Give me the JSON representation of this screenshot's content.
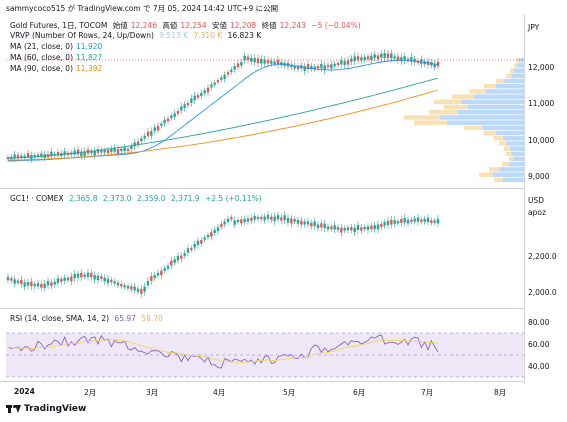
{
  "header": {
    "text": "sammycoco515 が TradingView.com で 7月 05, 2024 14:42 UTC+9 に公開"
  },
  "main_legend": {
    "title": "Gold Futures, 1日, TOCOM",
    "open_label": "始値",
    "open": "12,246",
    "high_label": "高値",
    "high": "12,254",
    "low_label": "安値",
    "low": "12,208",
    "close_label": "終値",
    "close": "12,243",
    "change": "−5 (−0.04%)",
    "vrvp_label": "VRVP (Number Of Rows, 24, Up/Down)",
    "vrvp_v1": "9.513 K",
    "vrvp_v2": "7.310 K",
    "vrvp_v3": "16.823 K",
    "ma21_label": "MA (21, close, 0)",
    "ma21": "11,920",
    "ma60_label": "MA (60, close, 0)",
    "ma60": "11,827",
    "ma90_label": "MA (90, close, 0)",
    "ma90": "11,392"
  },
  "comex_legend": {
    "title": "GC1! · COMEX",
    "o": "2,365.8",
    "h": "2,373.0",
    "l": "2,359.0",
    "c": "2,371.9",
    "chg": "+2.5 (+0.11%)"
  },
  "rsi_legend": {
    "label": "RSI (14, close, SMA, 14, 2)",
    "rsi": "65.97",
    "sma": "58.70"
  },
  "currency": {
    "top": "JPY",
    "mid": "USD",
    "mid_sub": "apoz"
  },
  "y_axis_top": [
    "12,000",
    "11,000",
    "10,000",
    "9,000"
  ],
  "y_axis_mid": [
    "2,200.0",
    "2,000.0"
  ],
  "y_axis_rsi": [
    "80.00",
    "60.00",
    "40.00"
  ],
  "x_axis": [
    "2024",
    "2月",
    "3月",
    "4月",
    "5月",
    "6月",
    "7月",
    "8月"
  ],
  "footer": {
    "brand": "TradingView"
  },
  "colors": {
    "up": "#26a69a",
    "down": "#ef5350",
    "ma21": "#2196f3",
    "ma60": "#26a69a",
    "ma90": "#ef8f1a",
    "rsi": "#7e57c2",
    "rsi_sma": "#f5d34a",
    "vrvp_up": "#9ec9f5",
    "vrvp_down": "#f7d9a2"
  }
}
